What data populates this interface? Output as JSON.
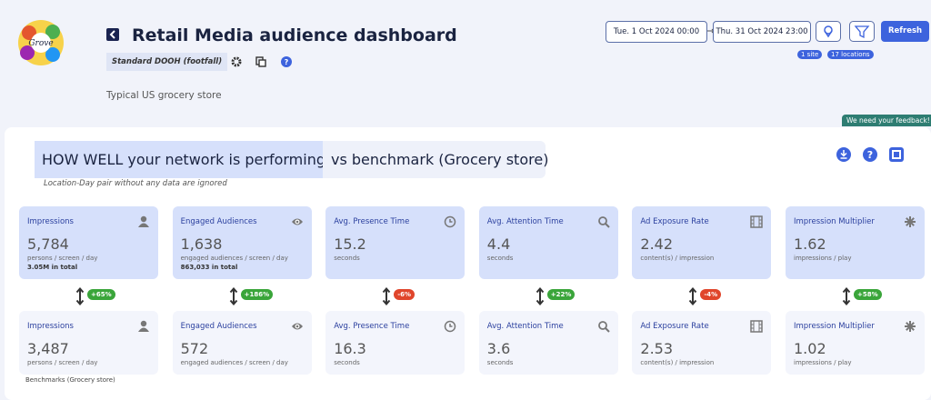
{
  "header": {
    "logo_text": "Grove",
    "title": "Retail Media audience dashboard",
    "tag": "Standard DOOH (footfall)",
    "subtitle": "Typical US grocery store",
    "date_from": "Tue. 1 Oct 2024 00:00",
    "date_to": "Thu. 31 Oct 2024 23:00",
    "refresh": "Refresh",
    "sites": "1 site",
    "locations": "17 locations",
    "feedback": "We need your feedback!"
  },
  "section": {
    "heading": "HOW WELL your network is performing",
    "heading_suffix": "vs benchmark (Grocery store)",
    "note": "Location-Day pair without any data are ignored",
    "benchmark_label": "Benchmarks (Grocery store)"
  },
  "cards": [
    {
      "title": "Impressions",
      "value": "5,784",
      "unit": "persons / screen / day",
      "total": "3.05M in total",
      "change": "+65%",
      "badge_color": "#3aa53a",
      "benchmark_value": "3,487",
      "benchmark_unit": "persons / screen / day"
    },
    {
      "title": "Engaged Audiences",
      "value": "1,638",
      "unit": "engaged audiences / screen / day",
      "total": "863,033 in total",
      "change": "+186%",
      "badge_color": "#3aa53a",
      "benchmark_value": "572",
      "benchmark_unit": "engaged audiences / screen / day"
    },
    {
      "title": "Avg. Presence Time",
      "value": "15.2",
      "unit": "seconds",
      "change": "-6%",
      "badge_color": "#e0452b",
      "benchmark_value": "16.3",
      "benchmark_unit": "seconds"
    },
    {
      "title": "Avg. Attention Time",
      "value": "4.4",
      "unit": "seconds",
      "change": "+22%",
      "badge_color": "#3aa53a",
      "benchmark_value": "3.6",
      "benchmark_unit": "seconds"
    },
    {
      "title": "Ad Exposure Rate",
      "value": "2.42",
      "unit": "content(s) / impression",
      "change": "-4%",
      "badge_color": "#e0452b",
      "benchmark_value": "2.53",
      "benchmark_unit": "content(s) / impression"
    },
    {
      "title": "Impression Multiplier",
      "value": "1.62",
      "unit": "impressions / play",
      "change": "+58%",
      "badge_color": "#3aa53a",
      "benchmark_value": "1.02",
      "benchmark_unit": "impressions / play"
    }
  ]
}
